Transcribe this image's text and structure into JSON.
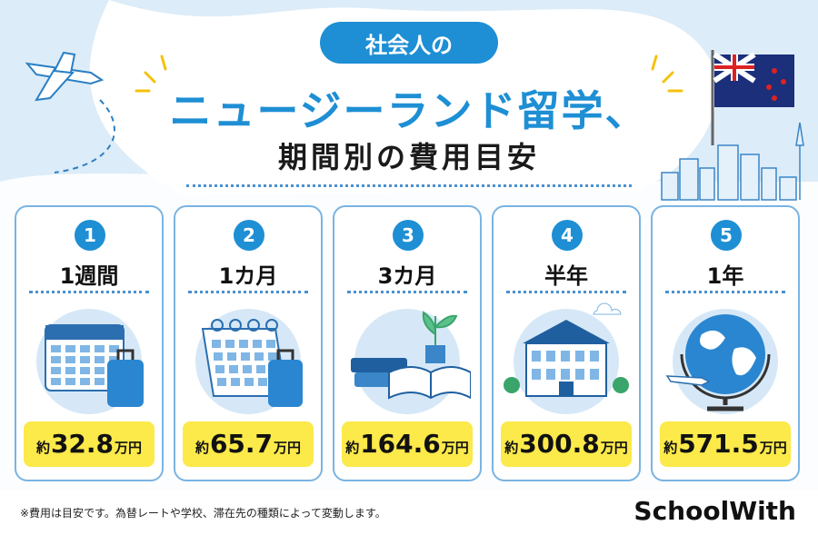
{
  "header": {
    "badge": "社会人の",
    "title": "ニュージーランド留学、",
    "subtitle": "期間別の費用目安"
  },
  "cards": [
    {
      "number": 1,
      "period": "1週間",
      "prefix": "約",
      "amount": 32.8,
      "unit": "万円"
    },
    {
      "number": 2,
      "period": "1カ月",
      "prefix": "約",
      "amount": 65.7,
      "unit": "万円"
    },
    {
      "number": 3,
      "period": "3カ月",
      "prefix": "約",
      "amount": 164.6,
      "unit": "万円"
    },
    {
      "number": 4,
      "period": "半年",
      "prefix": "約",
      "amount": 300.8,
      "unit": "万円"
    },
    {
      "number": 5,
      "period": "1年",
      "prefix": "約",
      "amount": 571.5,
      "unit": "万円"
    }
  ],
  "footnote": "※費用は目安です。為替レートや学校、滞在先の種類によって変動します。",
  "logo": "SchoolWith"
}
